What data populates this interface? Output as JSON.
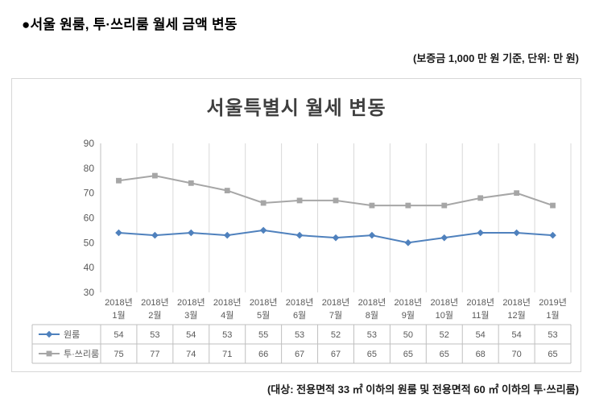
{
  "page": {
    "heading": "●서울 원룸, 투·쓰리룸 월세 금액 변동",
    "deposit_note": "(보증금 1,000 만 원 기준, 단위: 만 원)",
    "target_note": "(대상: 전용면적 33 ㎡ 이하의 원룸 및 전용면적 60 ㎡ 이하의 투·쓰리룸)"
  },
  "chart_data": {
    "type": "line",
    "title": "서울특별시 월세 변동",
    "categories": [
      [
        "2018년",
        "1월"
      ],
      [
        "2018년",
        "2월"
      ],
      [
        "2018년",
        "3월"
      ],
      [
        "2018년",
        "4월"
      ],
      [
        "2018년",
        "5월"
      ],
      [
        "2018년",
        "6월"
      ],
      [
        "2018년",
        "7월"
      ],
      [
        "2018년",
        "8월"
      ],
      [
        "2018년",
        "9월"
      ],
      [
        "2018년",
        "10월"
      ],
      [
        "2018년",
        "11월"
      ],
      [
        "2018년",
        "12월"
      ],
      [
        "2019년",
        "1월"
      ]
    ],
    "series": [
      {
        "name": "원룸",
        "marker": "diamond",
        "color": "#4f81bd",
        "values": [
          54,
          53,
          54,
          53,
          55,
          53,
          52,
          53,
          50,
          52,
          54,
          54,
          53
        ]
      },
      {
        "name": "투·쓰리룸",
        "marker": "square",
        "color": "#a6a6a6",
        "values": [
          75,
          77,
          74,
          71,
          66,
          67,
          67,
          65,
          65,
          65,
          68,
          70,
          65
        ]
      }
    ],
    "ylim": [
      30,
      90
    ],
    "ytick_step": 10,
    "grid": "vertical",
    "legend_position": "data-table-left",
    "colors": {
      "gridline": "#d9d9d9",
      "axis": "#bfbfbf",
      "table_border": "#bfbfbf",
      "text": "#595959"
    }
  }
}
